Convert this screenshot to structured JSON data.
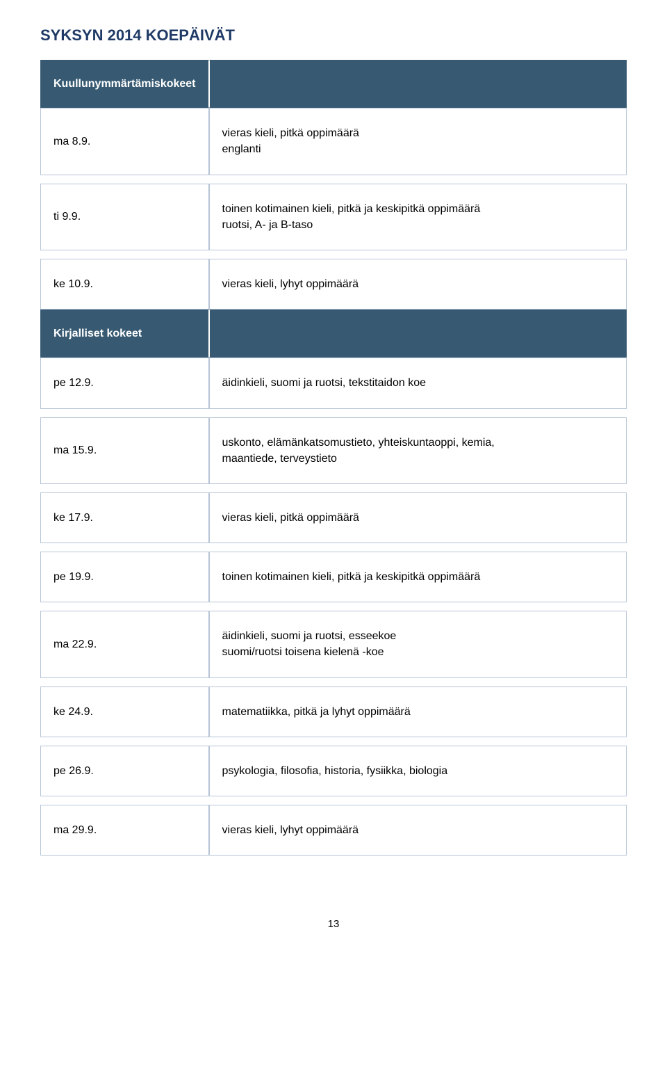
{
  "page": {
    "title": "SYKSYN 2014 KOEPÄIVÄT",
    "page_number": "13",
    "title_color": "#1f3a66",
    "header_bg": "#375a72",
    "header_fg": "#ffffff",
    "border_color": "#b6c4d6",
    "headers": {
      "listening": "Kuullunymmärtämiskokeet",
      "written": "Kirjalliset kokeet"
    },
    "rows": [
      {
        "type": "header",
        "date": "",
        "label_key": "page.headers.listening"
      },
      {
        "type": "row",
        "date": "ma 8.9.",
        "text": "vieras kieli, pitkä oppimäärä\nenglanti"
      },
      {
        "type": "row",
        "date": "ti 9.9.",
        "text": "toinen kotimainen kieli, pitkä ja keskipitkä oppimäärä\nruotsi, A- ja B-taso"
      },
      {
        "type": "row",
        "date": "ke 10.9.",
        "text": "vieras kieli, lyhyt oppimäärä"
      },
      {
        "type": "header",
        "date": "",
        "label_key": "page.headers.written"
      },
      {
        "type": "row",
        "date": "pe 12.9.",
        "text": "äidinkieli, suomi ja ruotsi, tekstitaidon koe"
      },
      {
        "type": "row",
        "date": "ma 15.9.",
        "text": "uskonto, elämänkatsomustieto, yhteiskuntaoppi, kemia,\nmaantiede, terveystieto"
      },
      {
        "type": "row",
        "date": "ke 17.9.",
        "text": "vieras kieli, pitkä oppimäärä"
      },
      {
        "type": "row",
        "date": "pe 19.9.",
        "text": "toinen kotimainen kieli, pitkä ja keskipitkä oppimäärä"
      },
      {
        "type": "row",
        "date": "ma 22.9.",
        "text": "äidinkieli, suomi ja ruotsi, esseekoe\nsuomi/ruotsi toisena kielenä -koe"
      },
      {
        "type": "row",
        "date": "ke 24.9.",
        "text": "matematiikka, pitkä ja lyhyt oppimäärä"
      },
      {
        "type": "row",
        "date": "pe 26.9.",
        "text": "psykologia, filosofia, historia, fysiikka, biologia"
      },
      {
        "type": "row",
        "date": "ma 29.9.",
        "text": "vieras kieli, lyhyt oppimäärä"
      }
    ]
  }
}
